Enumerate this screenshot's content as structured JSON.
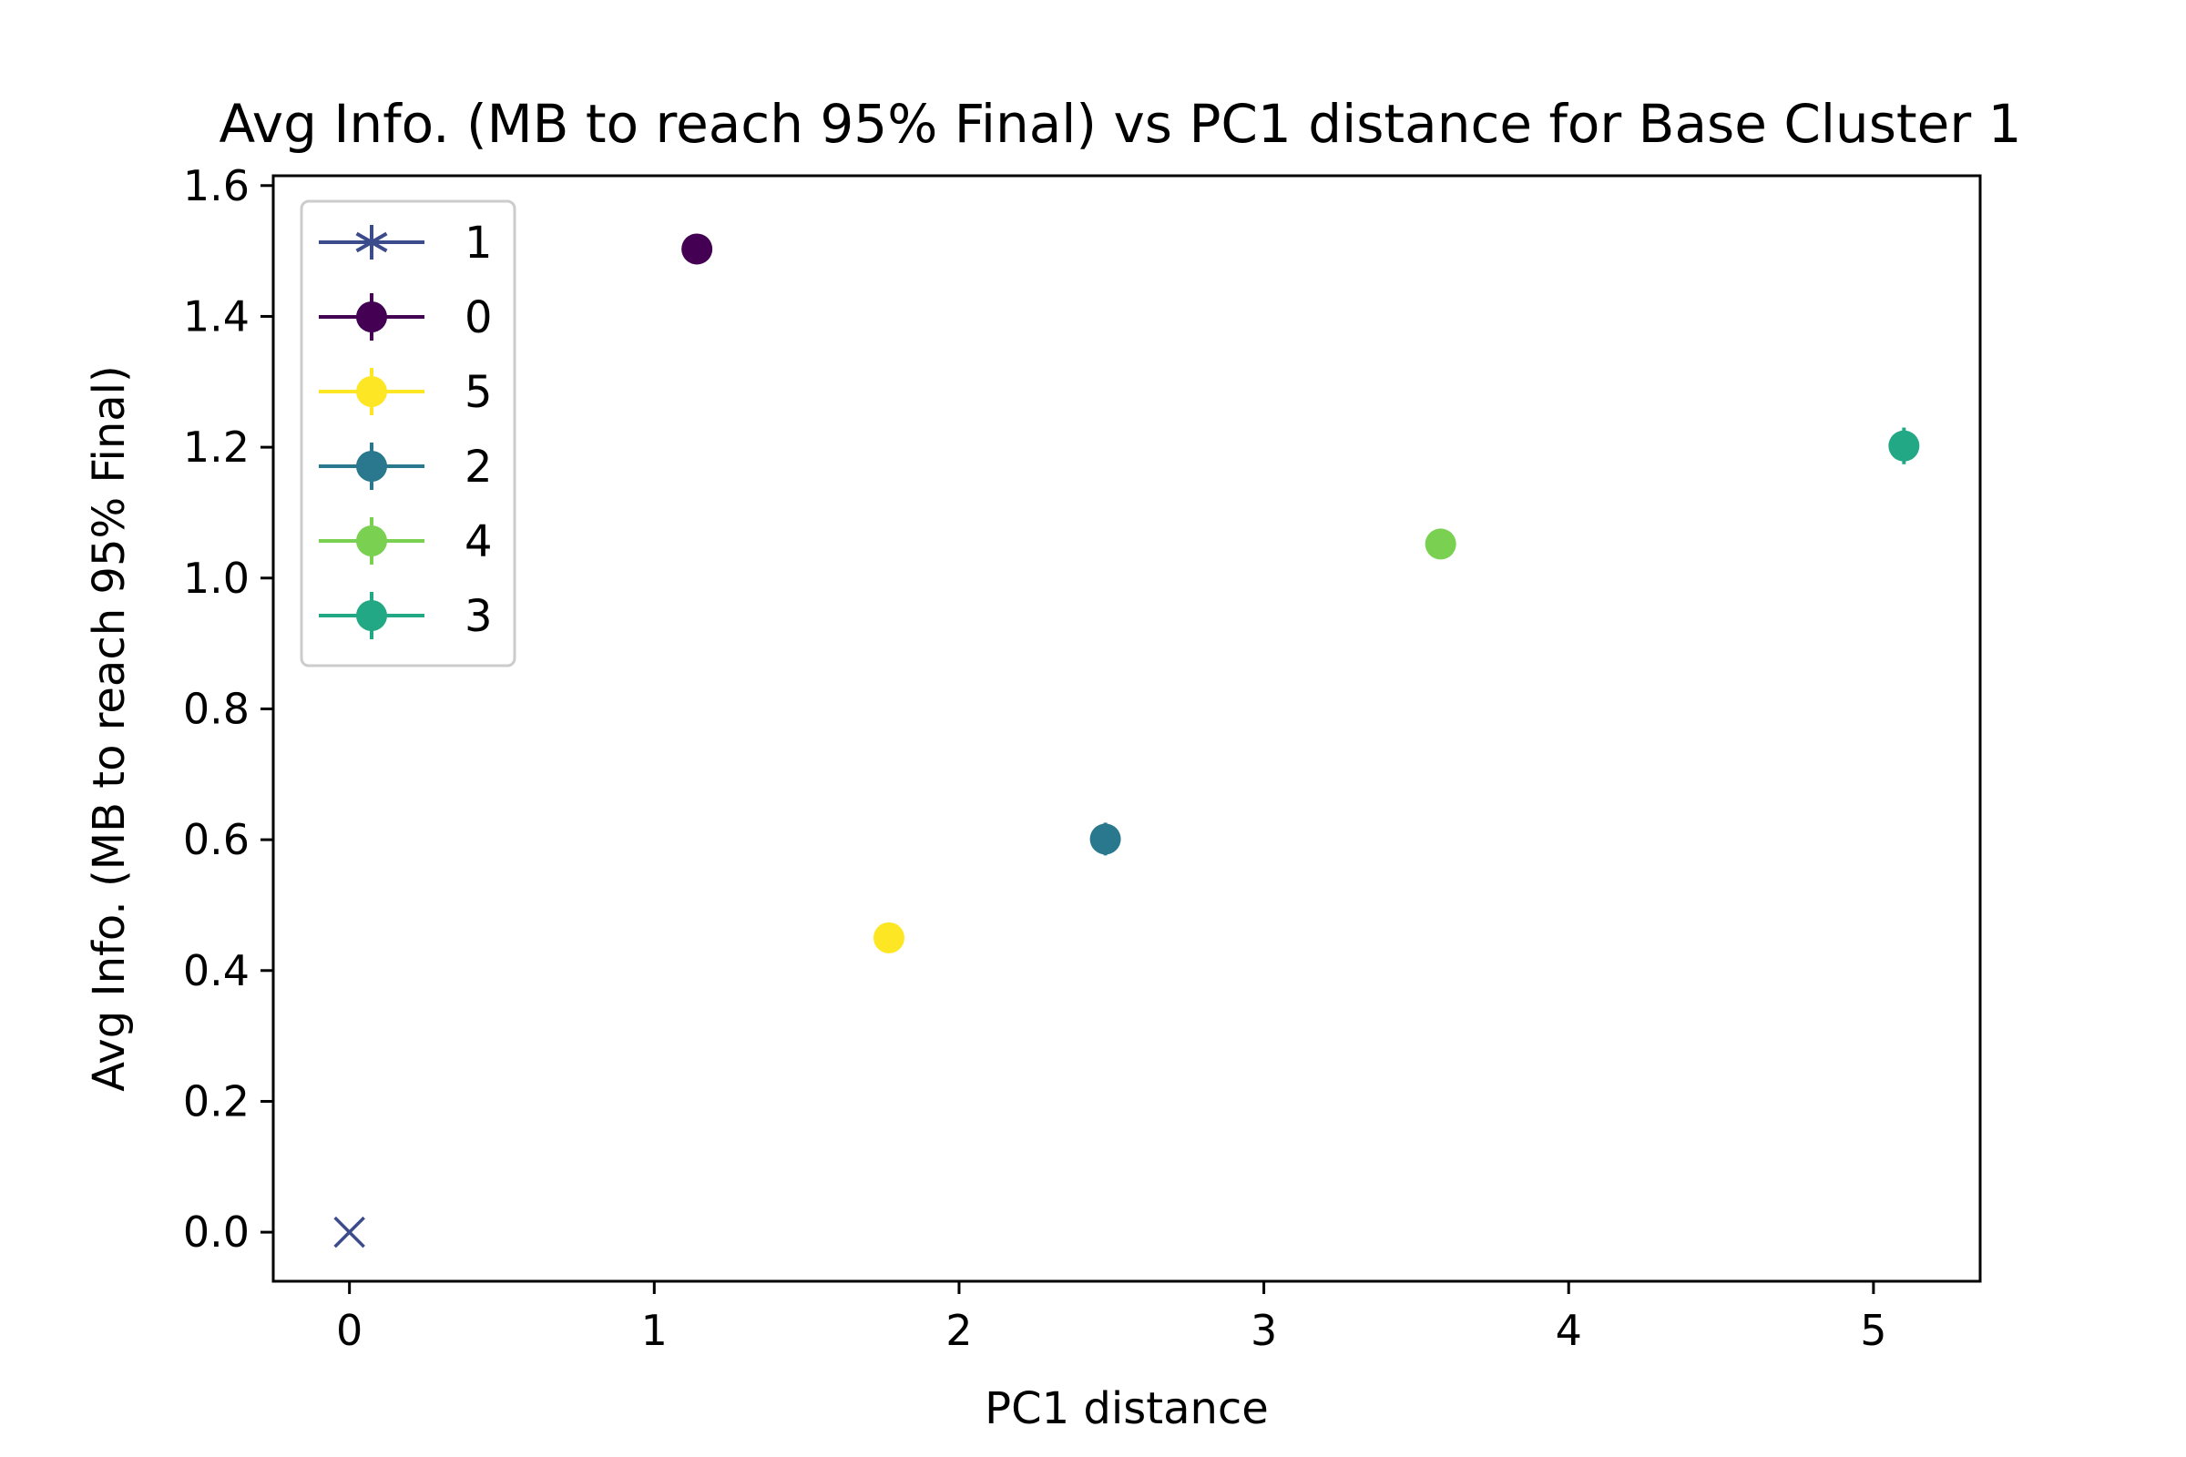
{
  "chart_data": {
    "type": "scatter",
    "title": "Avg Info. (MB to reach 95% Final) vs PC1 distance for Base Cluster 1",
    "xlabel": "PC1 distance",
    "ylabel": "Avg Info. (MB to reach 95% Final)",
    "xlim": [
      -0.25,
      5.35
    ],
    "ylim": [
      -0.075,
      1.615
    ],
    "xticks": [
      0,
      1,
      2,
      3,
      4,
      5
    ],
    "xtick_labels": [
      "0",
      "1",
      "2",
      "3",
      "4",
      "5"
    ],
    "yticks": [
      0.0,
      0.2,
      0.4,
      0.6,
      0.8,
      1.0,
      1.2,
      1.4,
      1.6
    ],
    "ytick_labels": [
      "0.0",
      "0.2",
      "0.4",
      "0.6",
      "0.8",
      "1.0",
      "1.2",
      "1.4",
      "1.6"
    ],
    "grid": false,
    "legend_position": "top-left",
    "series": [
      {
        "name": "1",
        "marker": "x",
        "legend_marker": "star",
        "color": "#3b4b8c",
        "points": [
          {
            "x": 0.0,
            "y": 0.0,
            "err": 0.0
          }
        ]
      },
      {
        "name": "0",
        "marker": "o",
        "color": "#440154",
        "points": [
          {
            "x": 1.14,
            "y": 1.503,
            "err": 0.022
          }
        ]
      },
      {
        "name": "5",
        "marker": "o",
        "color": "#fde725",
        "points": [
          {
            "x": 1.77,
            "y": 0.45,
            "err": 0.006
          }
        ]
      },
      {
        "name": "2",
        "marker": "o",
        "color": "#2a788e",
        "points": [
          {
            "x": 2.48,
            "y": 0.601,
            "err": 0.025
          }
        ]
      },
      {
        "name": "4",
        "marker": "o",
        "color": "#7ad151",
        "points": [
          {
            "x": 3.58,
            "y": 1.052,
            "err": 0.007
          }
        ]
      },
      {
        "name": "3",
        "marker": "o",
        "color": "#22a884",
        "points": [
          {
            "x": 5.1,
            "y": 1.202,
            "err": 0.028
          }
        ]
      }
    ]
  }
}
